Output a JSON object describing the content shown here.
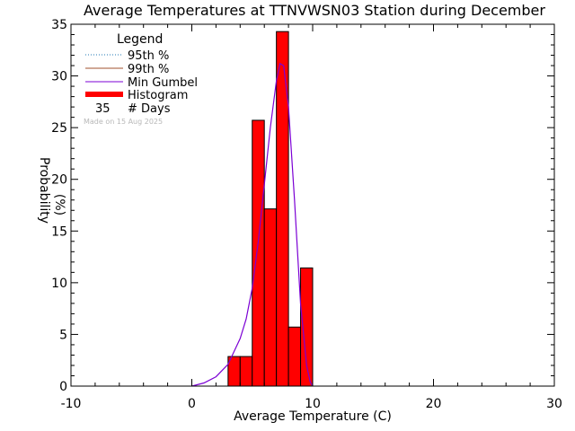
{
  "chart_data": {
    "type": "bar",
    "title": "Average Temperatures at TTNVWSN03 Station during December",
    "xlabel": "Average Temperature (C)",
    "ylabel_line1": "Probability",
    "ylabel_line2": "(%)",
    "xlim": [
      -10,
      30
    ],
    "ylim": [
      0,
      35
    ],
    "x_ticks": [
      -10,
      0,
      10,
      20,
      30
    ],
    "y_ticks": [
      0,
      5,
      10,
      15,
      20,
      25,
      30,
      35
    ],
    "grid": false,
    "legend": {
      "title": "Legend",
      "placement": "top-left",
      "items": [
        {
          "label": "95th %",
          "style": "dotted",
          "color": "#1f77b4"
        },
        {
          "label": "99th %",
          "style": "solid",
          "color": "#a0522d"
        },
        {
          "label": "Min Gumbel",
          "style": "solid",
          "color": "#7b00d4"
        },
        {
          "label": "Histogram",
          "style": "thick",
          "color": "#ff0000"
        }
      ],
      "days_count": "35",
      "days_label": "# Days"
    },
    "watermark": "Made on 15 Aug 2025",
    "histogram": {
      "bin_width": 1,
      "color": "#ff0000",
      "bins": [
        {
          "x0": 3,
          "value": 2.86
        },
        {
          "x0": 4,
          "value": 2.86
        },
        {
          "x0": 5,
          "value": 25.71
        },
        {
          "x0": 6,
          "value": 17.14
        },
        {
          "x0": 7,
          "value": 34.29
        },
        {
          "x0": 8,
          "value": 5.71
        },
        {
          "x0": 9,
          "value": 11.43
        }
      ]
    },
    "gumbel_curve": {
      "name": "Min Gumbel",
      "color": "#7b00d4",
      "x": [
        0,
        1,
        2,
        3,
        4,
        4.5,
        5,
        5.5,
        6,
        6.5,
        7,
        7.3,
        7.6,
        8,
        8.5,
        9,
        9.5,
        9.8,
        10
      ],
      "y": [
        0,
        0.3,
        0.9,
        2.1,
        4.6,
        6.5,
        9.5,
        14.0,
        19.5,
        25.0,
        29.5,
        31.2,
        31.0,
        27.0,
        18.0,
        8.0,
        2.0,
        0.4,
        0
      ]
    }
  }
}
